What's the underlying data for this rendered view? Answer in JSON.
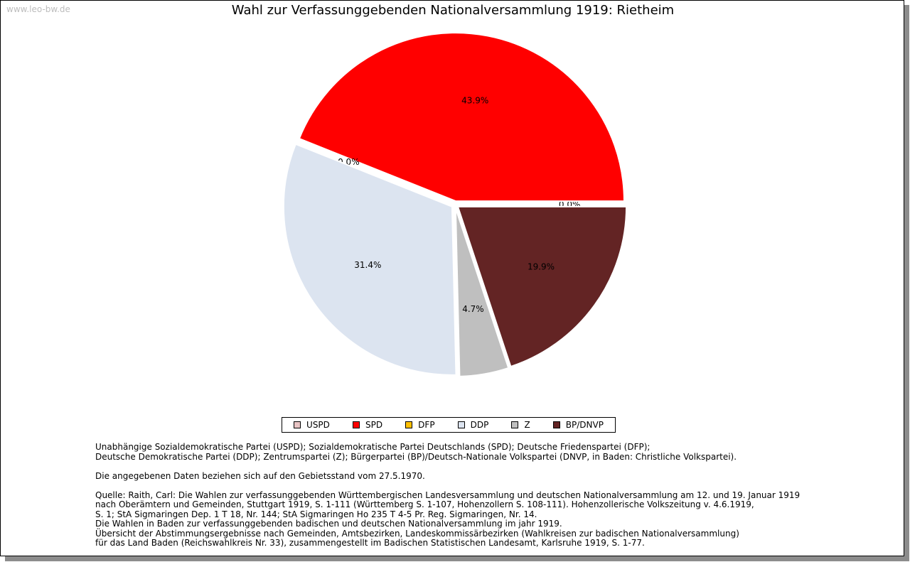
{
  "watermark": "www.leo-bw.de",
  "chart_data": {
    "type": "pie",
    "title": "Wahl zur Verfassunggebenden Nationalversammlung 1919: Rietheim",
    "series": [
      {
        "name": "USPD",
        "value": 0.0,
        "label": "0.0%",
        "color": "#e8c4c4"
      },
      {
        "name": "SPD",
        "value": 43.9,
        "label": "43.9%",
        "color": "#ff0000"
      },
      {
        "name": "DFP",
        "value": 0.0,
        "label": "0.0%",
        "color": "#ffc000"
      },
      {
        "name": "DDP",
        "value": 31.4,
        "label": "31.4%",
        "color": "#dce4f0"
      },
      {
        "name": "Z",
        "value": 4.7,
        "label": "4.7%",
        "color": "#bfbfbf"
      },
      {
        "name": "BP/DNVP",
        "value": 19.9,
        "label": "19.9%",
        "color": "#632424"
      }
    ],
    "legend_position": "bottom"
  },
  "notes": {
    "parties": [
      "Unabhängige Sozialdemokratische Partei (USPD); Sozialdemokratische Partei Deutschlands (SPD); Deutsche Friedenspartei (DFP);",
      "Deutsche Demokratische Partei (DDP); Zentrumspartei (Z); Bürgerpartei (BP)/Deutsch-Nationale Volkspartei (DNVP, in Baden: Christliche Volkspartei)."
    ],
    "territory": "Die angegebenen Daten beziehen sich auf den Gebietsstand vom 27.5.1970.",
    "sources": [
      "Quelle: Raith, Carl: Die Wahlen zur verfassunggebenden Württembergischen Landesversammlung und deutschen Nationalversammlung am 12. und 19. Januar 1919",
      "nach Oberämtern und Gemeinden, Stuttgart 1919, S. 1-111 (Württemberg S. 1-107, Hohenzollern S. 108-111). Hohenzollerische Volkszeitung v. 4.6.1919,",
      "S. 1; StA Sigmaringen Dep. 1 T 18, Nr. 144; StA Sigmaringen Ho 235 T 4-5 Pr. Reg. Sigmaringen, Nr. 14.",
      "Die Wahlen in Baden zur verfassunggebenden badischen und deutschen Nationalversammlung im jahr 1919.",
      "Übersicht der Abstimmungsergebnisse nach Gemeinden, Amtsbezirken, Landeskommissärbezirken (Wahlkreisen zur badischen Nationalversammlung)",
      "für das Land Baden (Reichswahlkreis Nr. 33), zusammengestellt im Badischen Statistischen Landesamt, Karlsruhe 1919, S. 1-77."
    ]
  }
}
